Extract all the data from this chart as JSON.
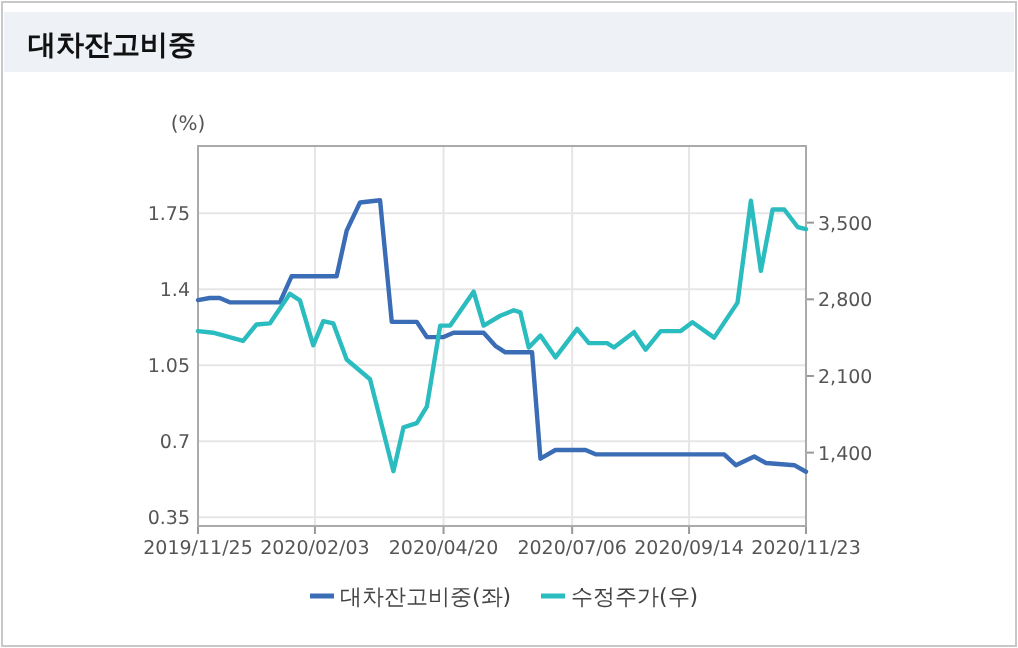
{
  "chart_data": {
    "type": "line",
    "title": "대차잔고비중",
    "ylabel": "(%)",
    "xlim": [
      "2019-11-25",
      "2020-11-23"
    ],
    "xticks": [
      {
        "value": "2019-11-25",
        "label": "2019/11/25"
      },
      {
        "value": "2020-02-03",
        "label": "2020/02/03"
      },
      {
        "value": "2020-04-20",
        "label": "2020/04/20"
      },
      {
        "value": "2020-07-06",
        "label": "2020/07/06"
      },
      {
        "value": "2020-09-14",
        "label": "2020/09/14"
      },
      {
        "value": "2020-11-23",
        "label": "2020/11/23"
      }
    ],
    "ylim": [
      0.31,
      2.06
    ],
    "yticks": [
      0.35,
      0.7,
      1.05,
      1.4,
      1.75
    ],
    "y2lim": [
      730,
      4200
    ],
    "y2ticks": [
      {
        "value": 1400,
        "label": "1,400"
      },
      {
        "value": 2100,
        "label": "2,100"
      },
      {
        "value": 2800,
        "label": "2,800"
      },
      {
        "value": 3500,
        "label": "3,500"
      }
    ],
    "grid": true,
    "legend": "bottom",
    "line_style": "solid",
    "marker": "none",
    "series": [
      {
        "name": "대차잔고비중(좌)",
        "color": "#3a6db5",
        "x": [
          "2019-11-25",
          "2019-12-02",
          "2019-12-08",
          "2019-12-14",
          "2020-01-13",
          "2020-01-20",
          "2020-02-16",
          "2020-02-22",
          "2020-03-01",
          "2020-03-13",
          "2020-03-20",
          "2020-04-04",
          "2020-04-10",
          "2020-04-20",
          "2020-04-26",
          "2020-05-14",
          "2020-05-21",
          "2020-05-27",
          "2020-06-12",
          "2020-06-17",
          "2020-06-26",
          "2020-07-14",
          "2020-07-20",
          "2020-10-05",
          "2020-10-12",
          "2020-10-23",
          "2020-10-30",
          "2020-11-16",
          "2020-11-23"
        ],
        "values": [
          1.35,
          1.36,
          1.36,
          1.34,
          1.34,
          1.46,
          1.46,
          1.67,
          1.8,
          1.81,
          1.25,
          1.25,
          1.18,
          1.18,
          1.2,
          1.2,
          1.14,
          1.11,
          1.11,
          0.62,
          0.66,
          0.66,
          0.64,
          0.64,
          0.59,
          0.63,
          0.6,
          0.59,
          0.56
        ]
      },
      {
        "name": "수정주가(우)",
        "color": "#2bbcbf",
        "axis": "y2",
        "x": [
          "2019-11-25",
          "2019-12-04",
          "2019-12-22",
          "2019-12-30",
          "2020-01-07",
          "2020-01-19",
          "2020-01-25",
          "2020-02-02",
          "2020-02-08",
          "2020-02-14",
          "2020-02-22",
          "2020-03-07",
          "2020-03-21",
          "2020-03-27",
          "2020-04-04",
          "2020-04-10",
          "2020-04-18",
          "2020-04-24",
          "2020-05-08",
          "2020-05-14",
          "2020-05-24",
          "2020-06-01",
          "2020-06-05",
          "2020-06-10",
          "2020-06-17",
          "2020-06-26",
          "2020-07-09",
          "2020-07-16",
          "2020-07-27",
          "2020-07-31",
          "2020-08-12",
          "2020-08-19",
          "2020-08-28",
          "2020-09-09",
          "2020-09-16",
          "2020-09-29",
          "2020-10-13",
          "2020-10-21",
          "2020-10-27",
          "2020-11-03",
          "2020-11-10",
          "2020-11-18",
          "2020-11-23"
        ],
        "values": [
          2510,
          2495,
          2420,
          2570,
          2580,
          2850,
          2790,
          2380,
          2600,
          2580,
          2250,
          2070,
          1230,
          1630,
          1670,
          1820,
          2560,
          2560,
          2870,
          2560,
          2650,
          2700,
          2680,
          2360,
          2470,
          2270,
          2530,
          2400,
          2400,
          2360,
          2500,
          2340,
          2510,
          2510,
          2590,
          2450,
          2770,
          3700,
          3060,
          3620,
          3620,
          3460,
          3440
        ]
      }
    ]
  }
}
